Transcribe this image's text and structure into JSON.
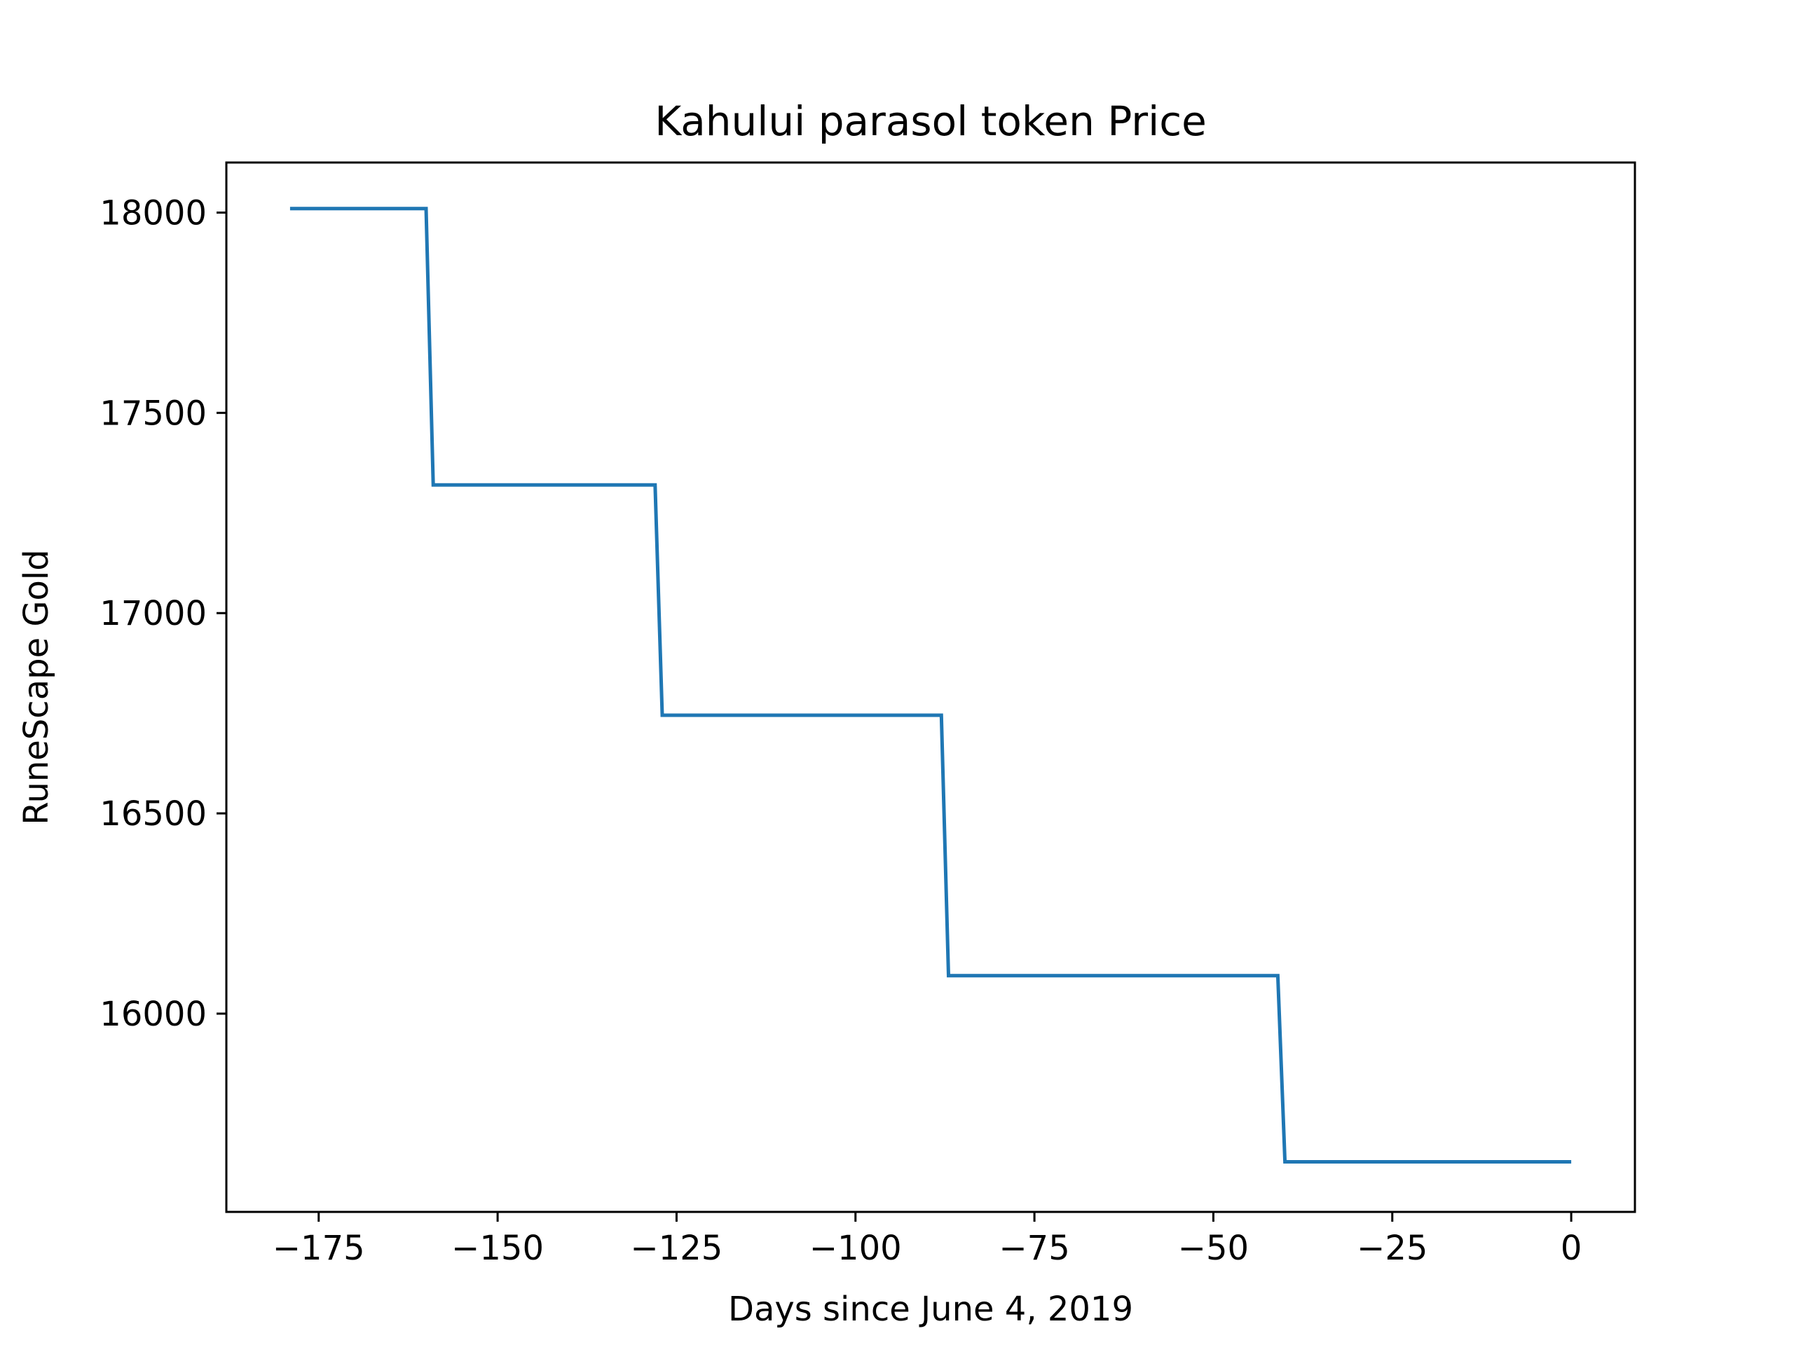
{
  "chart_data": {
    "type": "line",
    "title": "Kahului parasol token Price",
    "xlabel": "Days since June 4, 2019",
    "ylabel": "RuneScape Gold",
    "xlim": [
      -187.9,
      8.9
    ],
    "ylim": [
      15505,
      18125
    ],
    "xticks": [
      -175,
      -150,
      -125,
      -100,
      -75,
      -50,
      -25,
      0
    ],
    "xtick_labels": [
      "−175",
      "−150",
      "−125",
      "−100",
      "−75",
      "−50",
      "−25",
      "0"
    ],
    "yticks": [
      16000,
      16500,
      17000,
      17500,
      18000
    ],
    "ytick_labels": [
      "16000",
      "16500",
      "17000",
      "17500",
      "18000"
    ],
    "grid": false,
    "colors": {
      "line": "#1f77b4"
    },
    "series": [
      {
        "x": [
          -179,
          -160,
          -159,
          -128,
          -127,
          -88,
          -87,
          -41,
          -40,
          0
        ],
        "y": [
          18010,
          18010,
          17320,
          17320,
          16745,
          16745,
          16095,
          16095,
          15630,
          15630
        ]
      }
    ]
  }
}
